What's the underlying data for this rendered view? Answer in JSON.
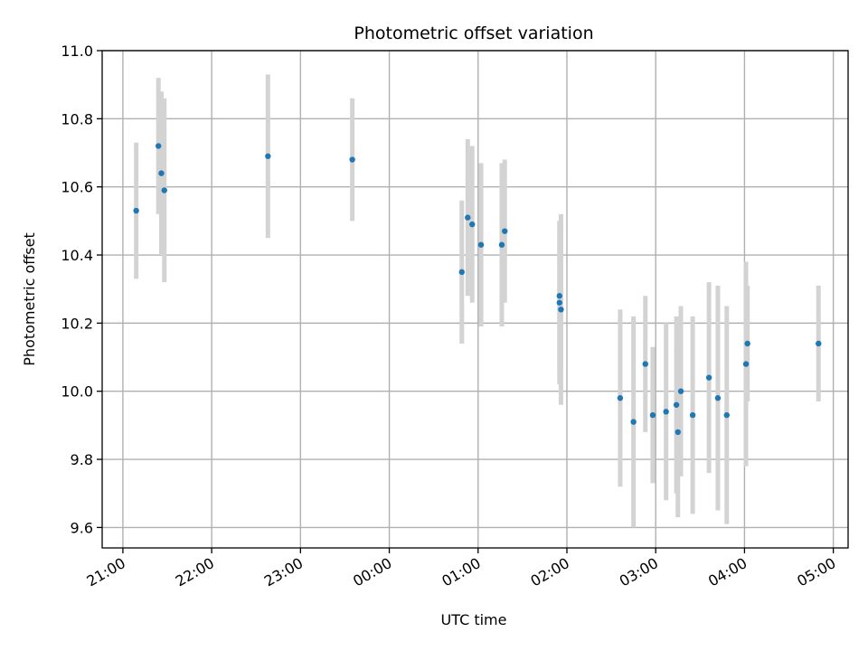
{
  "chart_data": {
    "type": "scatter",
    "title": "Photometric offset variation",
    "xlabel": "UTC time",
    "ylabel": "Photometric offset",
    "x_axis": {
      "kind": "time",
      "range": [
        "20:46",
        "05:10"
      ],
      "ticks": [
        "21:00",
        "22:00",
        "23:00",
        "00:00",
        "01:00",
        "02:00",
        "03:00",
        "04:00",
        "05:00"
      ]
    },
    "y_axis": {
      "range": [
        9.54,
        11.0
      ],
      "ticks": [
        "9.6",
        "9.8",
        "10.0",
        "10.2",
        "10.4",
        "10.6",
        "10.8",
        "11.0"
      ]
    },
    "grid": true,
    "marker_color": "#1f77b4",
    "errorbar_color": "#d3d3d3",
    "points": [
      {
        "t": "21:09",
        "y": 10.53,
        "err": 0.2
      },
      {
        "t": "21:24",
        "y": 10.72,
        "err": 0.2
      },
      {
        "t": "21:26",
        "y": 10.64,
        "err": 0.24
      },
      {
        "t": "21:28",
        "y": 10.59,
        "err": 0.27
      },
      {
        "t": "22:38",
        "y": 10.69,
        "err": 0.24
      },
      {
        "t": "23:35",
        "y": 10.68,
        "err": 0.18
      },
      {
        "t": "00:49",
        "y": 10.35,
        "err": 0.21
      },
      {
        "t": "00:53",
        "y": 10.51,
        "err": 0.23
      },
      {
        "t": "00:56",
        "y": 10.49,
        "err": 0.23
      },
      {
        "t": "01:02",
        "y": 10.43,
        "err": 0.24
      },
      {
        "t": "01:16",
        "y": 10.43,
        "err": 0.24
      },
      {
        "t": "01:18",
        "y": 10.47,
        "err": 0.21
      },
      {
        "t": "01:55",
        "y": 10.28,
        "err": 0.22
      },
      {
        "t": "01:55",
        "y": 10.26,
        "err": 0.24
      },
      {
        "t": "01:56",
        "y": 10.24,
        "err": 0.28
      },
      {
        "t": "02:36",
        "y": 9.98,
        "err": 0.26
      },
      {
        "t": "02:45",
        "y": 9.91,
        "err": 0.31
      },
      {
        "t": "02:53",
        "y": 10.08,
        "err": 0.2
      },
      {
        "t": "02:58",
        "y": 9.93,
        "err": 0.2
      },
      {
        "t": "03:07",
        "y": 9.94,
        "err": 0.26
      },
      {
        "t": "03:14",
        "y": 9.96,
        "err": 0.26
      },
      {
        "t": "03:15",
        "y": 9.88,
        "err": 0.25
      },
      {
        "t": "03:17",
        "y": 10.0,
        "err": 0.25
      },
      {
        "t": "03:25",
        "y": 9.93,
        "err": 0.29
      },
      {
        "t": "03:36",
        "y": 10.04,
        "err": 0.28
      },
      {
        "t": "03:42",
        "y": 9.98,
        "err": 0.33
      },
      {
        "t": "03:48",
        "y": 9.93,
        "err": 0.32
      },
      {
        "t": "04:01",
        "y": 10.08,
        "err": 0.3
      },
      {
        "t": "04:02",
        "y": 10.14,
        "err": 0.17
      },
      {
        "t": "04:50",
        "y": 10.14,
        "err": 0.17
      }
    ]
  }
}
